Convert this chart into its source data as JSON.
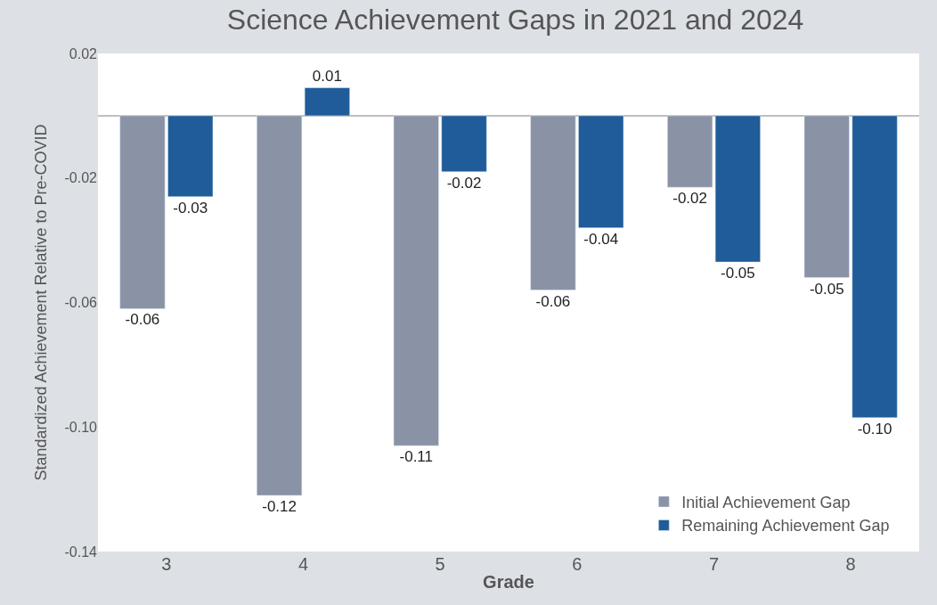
{
  "chart_data": {
    "type": "bar",
    "title": "Science Achievement Gaps in 2021 and 2024",
    "xlabel": "Grade",
    "ylabel": "Standardized Achievement Relative to Pre-COVID",
    "categories": [
      "3",
      "4",
      "5",
      "6",
      "7",
      "8"
    ],
    "series": [
      {
        "name": "Initial Achievement Gap",
        "color": "#8a93a6",
        "values": [
          -0.062,
          -0.122,
          -0.106,
          -0.056,
          -0.023,
          -0.052
        ],
        "value_labels": [
          "-0.06",
          "-0.12",
          "-0.11",
          "-0.06",
          "-0.02",
          "-0.05"
        ]
      },
      {
        "name": "Remaining Achievement Gap",
        "color": "#1f5c99",
        "values": [
          -0.026,
          0.009,
          -0.018,
          -0.036,
          -0.047,
          -0.097
        ],
        "value_labels": [
          "-0.03",
          "0.01",
          "-0.02",
          "-0.04",
          "-0.05",
          "-0.10"
        ]
      }
    ],
    "ylim": [
      -0.14,
      0.02
    ],
    "yticks": [
      {
        "value": -0.14,
        "label": "-0.14"
      },
      {
        "value": -0.1,
        "label": "-0.10"
      },
      {
        "value": -0.06,
        "label": "-0.06"
      },
      {
        "value": -0.02,
        "label": "-0.02"
      },
      {
        "value": 0.02,
        "label": "0.02"
      }
    ],
    "legend": "bottom right"
  }
}
